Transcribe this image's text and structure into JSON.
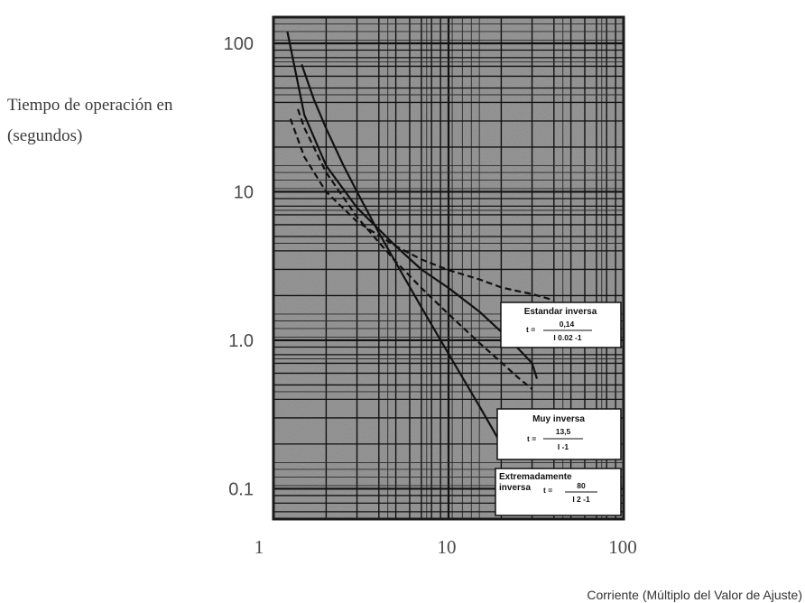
{
  "chart_data": {
    "type": "line",
    "title": "",
    "ylabel": [
      "Tiempo de operación en",
      "(segundos)"
    ],
    "xlabel": "Corriente (Múltiplo del Valor de Ajuste)",
    "xscale": "log",
    "yscale": "log",
    "xlim": [
      1,
      100
    ],
    "ylim": [
      0.0625,
      150
    ],
    "x_ticks": [
      {
        "value": 1,
        "label": "1"
      },
      {
        "value": 10,
        "label": "10"
      },
      {
        "value": 100,
        "label": "100"
      }
    ],
    "y_ticks": [
      {
        "value": 0.1,
        "label": "0.1"
      },
      {
        "value": 1,
        "label": "1.0"
      },
      {
        "value": 10,
        "label": "10"
      },
      {
        "value": 100,
        "label": "100"
      }
    ],
    "grid": true,
    "background": "#8c8c8c",
    "series": [
      {
        "name": "Estandar inversa",
        "formula": {
          "numerator": "0,14",
          "denominator": "I 0.02 -1"
        },
        "style": "dashed",
        "x": [
          1.25,
          1.5,
          2,
          3,
          5,
          7,
          10,
          15,
          20,
          25,
          30,
          40
        ],
        "y": [
          31,
          17.2,
          10,
          6.3,
          4.3,
          3.5,
          2.97,
          2.57,
          2.27,
          2.14,
          2.05,
          1.86
        ]
      },
      {
        "name": "Muy inversa",
        "formula": {
          "numerator": "13,5",
          "denominator": "I -1"
        },
        "style": "dashed",
        "x": [
          1.38,
          1.5,
          2,
          3,
          5,
          7,
          10,
          15,
          20,
          25,
          30
        ],
        "y": [
          36,
          27,
          13.5,
          6.75,
          3.38,
          2.25,
          1.5,
          0.96,
          0.71,
          0.56,
          0.47
        ]
      },
      {
        "name": "Extremadamente inversa",
        "formula": {
          "numerator": "80",
          "denominator": "I 2 -1"
        },
        "style": "solid",
        "x": [
          1.45,
          1.7,
          2,
          2.5,
          3,
          4,
          5,
          7,
          10,
          15,
          20
        ],
        "y": [
          72,
          42,
          26.7,
          15.2,
          10,
          5.3,
          3.33,
          1.67,
          0.81,
          0.36,
          0.2
        ]
      },
      {
        "name": "",
        "style": "solid",
        "x": [
          1.2,
          1.5,
          2,
          3,
          5,
          7,
          10,
          15,
          20,
          25,
          30,
          32
        ],
        "y": [
          120,
          33,
          15,
          7.8,
          4.3,
          3.0,
          2.25,
          1.56,
          1.14,
          0.88,
          0.7,
          0.55
        ]
      }
    ],
    "legend_placement": "right, next to curve ends"
  }
}
